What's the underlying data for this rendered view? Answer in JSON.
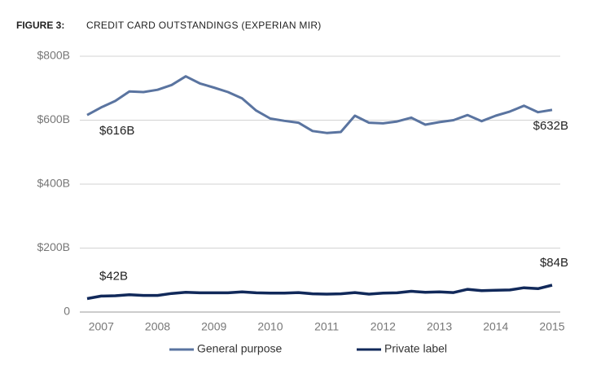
{
  "chart_data": {
    "type": "line",
    "figure_label": "FIGURE 3:",
    "title": "CREDIT CARD OUTSTANDINGS (EXPERIAN MIR)",
    "categories": [
      null,
      "2007",
      null,
      null,
      null,
      "2008",
      null,
      null,
      null,
      "2009",
      null,
      null,
      null,
      "2010",
      null,
      null,
      null,
      "2011",
      null,
      null,
      null,
      "2012",
      null,
      null,
      null,
      "2013",
      null,
      null,
      null,
      "2014",
      null,
      null,
      null,
      "2015"
    ],
    "series": [
      {
        "name": "General purpose",
        "color": "#5a74a0",
        "values": [
          616,
          640,
          660,
          690,
          688,
          695,
          710,
          737,
          715,
          702,
          688,
          668,
          630,
          605,
          598,
          592,
          566,
          560,
          563,
          614,
          592,
          590,
          596,
          608,
          586,
          594,
          600,
          616,
          597,
          614,
          627,
          645,
          625,
          632
        ],
        "value_labels": [
          "$616B",
          null,
          null,
          null,
          null,
          null,
          null,
          null,
          null,
          null,
          null,
          null,
          null,
          null,
          null,
          null,
          null,
          null,
          null,
          null,
          null,
          null,
          null,
          null,
          null,
          null,
          null,
          null,
          null,
          null,
          null,
          null,
          null,
          "$632B"
        ]
      },
      {
        "name": "Private label",
        "color": "#11295a",
        "values": [
          42,
          50,
          51,
          54,
          52,
          52,
          58,
          62,
          60,
          60,
          60,
          63,
          60,
          59,
          59,
          61,
          57,
          56,
          57,
          61,
          56,
          59,
          60,
          65,
          62,
          63,
          61,
          71,
          67,
          68,
          69,
          76,
          73,
          84
        ],
        "value_labels": [
          "$42B",
          null,
          null,
          null,
          null,
          null,
          null,
          null,
          null,
          null,
          null,
          null,
          null,
          null,
          null,
          null,
          null,
          null,
          null,
          null,
          null,
          null,
          null,
          null,
          null,
          null,
          null,
          null,
          null,
          null,
          null,
          null,
          null,
          "$84B"
        ]
      }
    ],
    "ylim": [
      0,
      800
    ],
    "yticks": [
      0,
      {
        "value": 200,
        "label": "$200B"
      },
      {
        "value": 400,
        "label": "$400B"
      },
      {
        "value": 600,
        "label": "$600B"
      },
      {
        "value": 800,
        "label": "$800B"
      }
    ],
    "grid": true
  }
}
